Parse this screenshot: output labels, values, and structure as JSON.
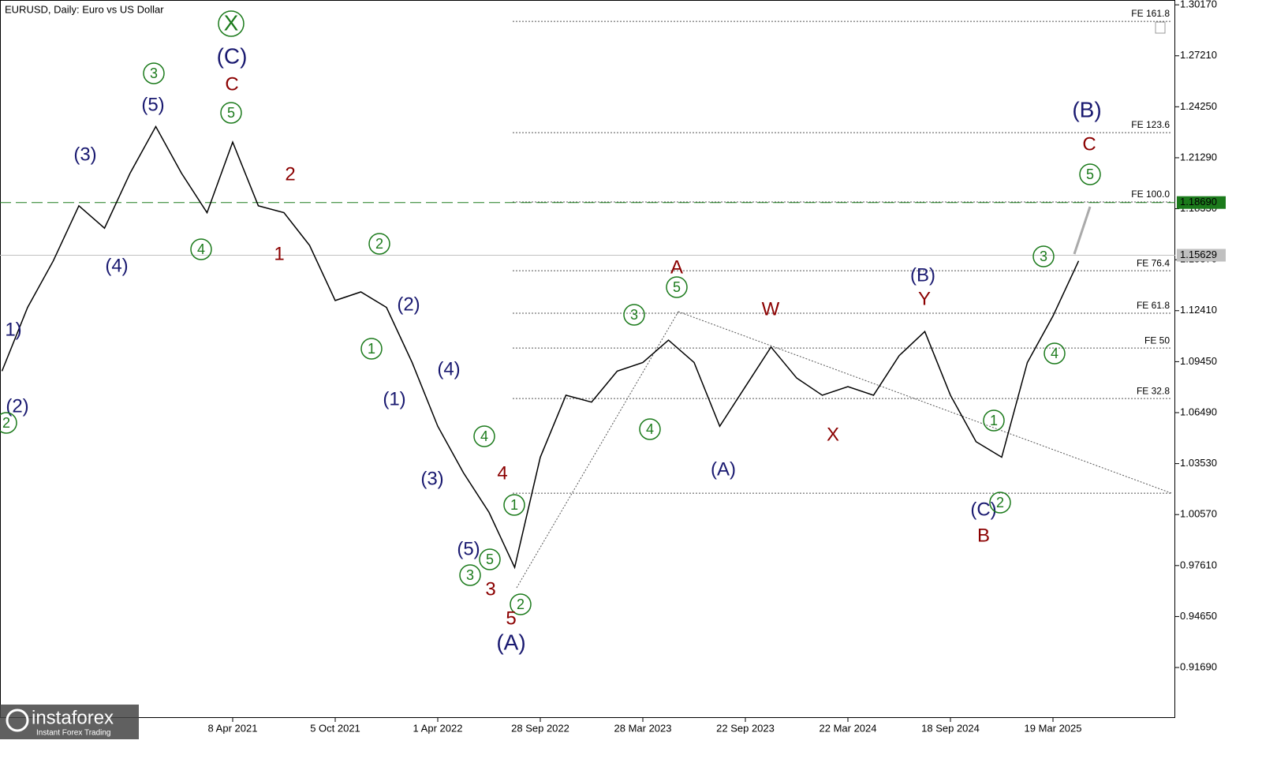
{
  "chart_data": {
    "type": "line",
    "title": "EURUSD, Daily:  Euro vs US Dollar",
    "categories": [
      null,
      null,
      null,
      null,
      null,
      null,
      null,
      null,
      null,
      "8 Apr 2021",
      null,
      null,
      null,
      "5 Oct 2021",
      null,
      null,
      null,
      "1 Apr 2022",
      null,
      null,
      null,
      "28 Sep 2022",
      null,
      null,
      null,
      "28 Mar 2023",
      null,
      null,
      null,
      "22 Sep 2023",
      null,
      null,
      null,
      "22 Mar 2024",
      null,
      null,
      null,
      "18 Sep 2024",
      null,
      null,
      null,
      "19 Mar 2025",
      null
    ],
    "series": [
      {
        "name": "EURUSD",
        "color": "#000000",
        "values": [
          1.089,
          1.126,
          1.153,
          1.185,
          1.172,
          1.204,
          1.231,
          1.204,
          1.181,
          1.222,
          1.185,
          1.181,
          1.162,
          1.13,
          1.135,
          1.126,
          1.094,
          1.057,
          1.03,
          1.007,
          0.975,
          1.039,
          1.075,
          1.071,
          1.089,
          1.094,
          1.107,
          1.094,
          1.057,
          1.08,
          1.103,
          1.085,
          1.075,
          1.08,
          1.075,
          1.098,
          1.112,
          1.075,
          1.048,
          1.039,
          1.094,
          1.121,
          1.153
        ]
      }
    ],
    "ylim": [
      0.8876,
      1.3045
    ],
    "yticks": [
      {
        "value": 1.3017,
        "label": "1.30170"
      },
      {
        "value": 1.2721,
        "label": "1.27210"
      },
      {
        "value": 1.2425,
        "label": "1.24250"
      },
      {
        "value": 1.2129,
        "label": "1.21290"
      },
      {
        "value": 1.1833,
        "label": "1.18330"
      },
      {
        "value": 1.1537,
        "label": "1.15370"
      },
      {
        "value": 1.1241,
        "label": "1.12410"
      },
      {
        "value": 1.0945,
        "label": "1.09450"
      },
      {
        "value": 1.0649,
        "label": "1.06490"
      },
      {
        "value": 1.0353,
        "label": "1.03530"
      },
      {
        "value": 1.0057,
        "label": "1.00570"
      },
      {
        "value": 0.9761,
        "label": "0.97610"
      },
      {
        "value": 0.9465,
        "label": "0.94650"
      },
      {
        "value": 0.9169,
        "label": "0.91690"
      }
    ],
    "price_lines": [
      {
        "value": 1.1869,
        "label": "1.18690",
        "color": "#1b7a1b"
      },
      {
        "value": 1.15629,
        "label": "1.15629",
        "color": "#c0c0c0"
      }
    ],
    "levels": [
      {
        "value": 1.2921,
        "label": "FE 161.8"
      },
      {
        "value": 1.2275,
        "label": "FE 123.6"
      },
      {
        "value": 1.1872,
        "label": "FE 100.0"
      },
      {
        "value": 1.1473,
        "label": "FE 76.4"
      },
      {
        "value": 1.1226,
        "label": "FE 61.8"
      },
      {
        "value": 1.1024,
        "label": "FE 50"
      },
      {
        "value": 1.0731,
        "label": "FE 32.8"
      },
      {
        "value": 1.0181
      }
    ],
    "annotations": [
      {
        "text": "1)",
        "color": "#191970"
      },
      {
        "text": "(2)",
        "color": "#191970"
      },
      {
        "text": "2",
        "color": "#1b7a1b",
        "circled": true
      },
      {
        "text": "(3)",
        "color": "#191970"
      },
      {
        "text": "3",
        "color": "#1b7a1b",
        "circled": true
      },
      {
        "text": "(5)",
        "color": "#191970"
      },
      {
        "text": "(4)",
        "color": "#191970"
      },
      {
        "text": "4",
        "color": "#1b7a1b",
        "circled": true
      },
      {
        "text": "X",
        "color": "#1b7a1b",
        "circled": true
      },
      {
        "text": "(C)",
        "color": "#191970"
      },
      {
        "text": "C",
        "color": "#8b0000"
      },
      {
        "text": "5",
        "color": "#1b7a1b",
        "circled": true
      },
      {
        "text": "2",
        "color": "#8b0000"
      },
      {
        "text": "1",
        "color": "#8b0000"
      },
      {
        "text": "2",
        "color": "#1b7a1b",
        "circled": true
      },
      {
        "text": "(2)",
        "color": "#191970"
      },
      {
        "text": "1",
        "color": "#1b7a1b",
        "circled": true
      },
      {
        "text": "(1)",
        "color": "#191970"
      },
      {
        "text": "(4)",
        "color": "#191970"
      },
      {
        "text": "(3)",
        "color": "#191970"
      },
      {
        "text": "4",
        "color": "#1b7a1b",
        "circled": true
      },
      {
        "text": "4",
        "color": "#8b0000"
      },
      {
        "text": "1",
        "color": "#1b7a1b",
        "circled": true
      },
      {
        "text": "(5)",
        "color": "#191970"
      },
      {
        "text": "5",
        "color": "#1b7a1b",
        "circled": true
      },
      {
        "text": "3",
        "color": "#1b7a1b",
        "circled": true
      },
      {
        "text": "3",
        "color": "#8b0000"
      },
      {
        "text": "2",
        "color": "#1b7a1b",
        "circled": true
      },
      {
        "text": "5",
        "color": "#8b0000"
      },
      {
        "text": "(A)",
        "color": "#191970"
      },
      {
        "text": "A",
        "color": "#8b0000"
      },
      {
        "text": "5",
        "color": "#1b7a1b",
        "circled": true
      },
      {
        "text": "3",
        "color": "#1b7a1b",
        "circled": true
      },
      {
        "text": "4",
        "color": "#1b7a1b",
        "circled": true
      },
      {
        "text": "(A)",
        "color": "#191970"
      },
      {
        "text": "W",
        "color": "#8b0000"
      },
      {
        "text": "X",
        "color": "#8b0000"
      },
      {
        "text": "(B)",
        "color": "#191970"
      },
      {
        "text": "Y",
        "color": "#8b0000"
      },
      {
        "text": "1",
        "color": "#1b7a1b",
        "circled": true
      },
      {
        "text": "(C)",
        "color": "#191970"
      },
      {
        "text": "2",
        "color": "#1b7a1b",
        "circled": true
      },
      {
        "text": "B",
        "color": "#8b0000"
      },
      {
        "text": "3",
        "color": "#1b7a1b",
        "circled": true
      },
      {
        "text": "4",
        "color": "#1b7a1b",
        "circled": true
      },
      {
        "text": "(B)",
        "color": "#191970"
      },
      {
        "text": "C",
        "color": "#8b0000"
      },
      {
        "text": "5",
        "color": "#1b7a1b",
        "circled": true
      }
    ],
    "logo": {
      "name": "instaforex",
      "tagline": "Instant Forex Trading"
    }
  }
}
